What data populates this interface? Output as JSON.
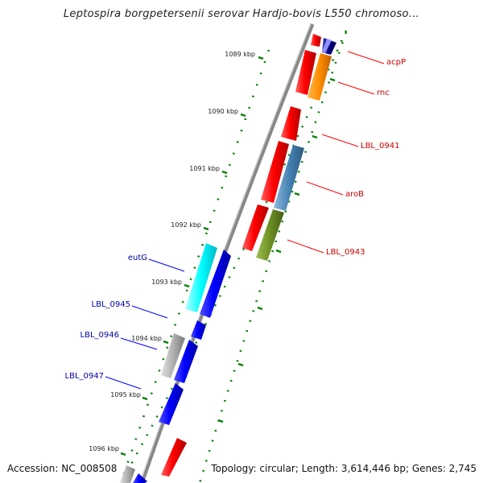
{
  "title": "Leptospira borgpetersenii serovar Hardjo-bovis L550 chromoso...",
  "footer": {
    "accession": "Accession: NC_008508",
    "topology": "Topology: circular; Length: 3,614,446 bp; Genes: 2,745"
  },
  "ticks": [
    "1089 kbp",
    "1090 kbp",
    "1091 kbp",
    "1092 kbp",
    "1093 kbp",
    "1094 kbp",
    "1095 kbp",
    "1096 kbp"
  ],
  "genes_forward": [
    {
      "label": "acpP",
      "color": "#ff0000"
    },
    {
      "label": "rnc",
      "color": "#ff0000"
    },
    {
      "label": "LBL_0941",
      "color": "#ff0000"
    },
    {
      "label": "aroB",
      "color": "#ff0000"
    },
    {
      "label": "LBL_0943",
      "color": "#ff0000"
    }
  ],
  "genes_reverse": [
    {
      "label": "eutG",
      "color": "#0000cc"
    },
    {
      "label": "LBL_0945",
      "color": "#0000cc"
    },
    {
      "label": "LBL_0946",
      "color": "#0000cc"
    },
    {
      "label": "LBL_0947",
      "color": "#0000cc"
    }
  ],
  "colors": {
    "forward_strand": "#ff0000",
    "reverse_strand": "#0000ff",
    "cog_orange": "#ff8c00",
    "cog_steelblue": "#4682b4",
    "cog_olive": "#6b8e23",
    "cog_cyan": "#00ffff",
    "cog_gray": "#b0b0b0",
    "cog_navy": "#000080",
    "backbone": "#808080",
    "gc_skew_tick": "#008000"
  }
}
